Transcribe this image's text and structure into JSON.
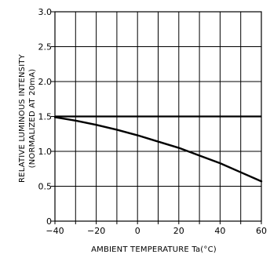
{
  "chart_data": {
    "type": "line",
    "xlabel": "AMBIENT TEMPERATURE Ta(°C)",
    "ylabel_lines": [
      "RELATIVE LUMINOUS INTENSITY",
      "(NORMALIZED AT 20mA)"
    ],
    "xlim": [
      -40,
      60
    ],
    "ylim": [
      0,
      3.0
    ],
    "grid": true,
    "x_ticks": [
      -40,
      -30,
      -20,
      -10,
      0,
      10,
      20,
      30,
      40,
      50,
      60
    ],
    "x_tick_labels": [
      {
        "value": -40,
        "label": "−40"
      },
      {
        "value": -20,
        "label": "−20"
      },
      {
        "value": 0,
        "label": "0"
      },
      {
        "value": 20,
        "label": "20"
      },
      {
        "value": 40,
        "label": "40"
      },
      {
        "value": 60,
        "label": "60"
      }
    ],
    "y_ticks": [
      0,
      0.5,
      1.0,
      1.5,
      2.0,
      2.5,
      3.0
    ],
    "y_tick_labels": [
      "0",
      "0.5",
      "1.0",
      "1.5",
      "2.0",
      "2.5",
      "3.0"
    ],
    "reference_line": {
      "y": 1.5
    },
    "series": [
      {
        "x": [
          -40,
          -30,
          -20,
          -10,
          0,
          10,
          20,
          30,
          40,
          50,
          60
        ],
        "y": [
          1.49,
          1.44,
          1.38,
          1.31,
          1.23,
          1.14,
          1.05,
          0.94,
          0.83,
          0.7,
          0.57
        ]
      }
    ],
    "colors": {
      "line": "#000000",
      "grid": "#000000"
    }
  }
}
